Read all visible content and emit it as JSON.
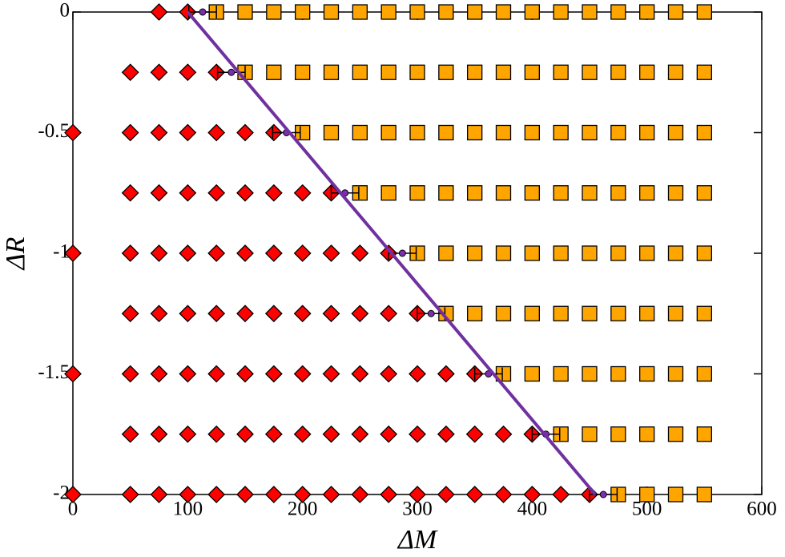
{
  "chart_data": {
    "type": "scatter",
    "x_label": "ΔM",
    "y_label": "ΔR",
    "xlim": [
      0,
      600
    ],
    "xticks": [
      0,
      100,
      200,
      300,
      400,
      500,
      600
    ],
    "ylim": [
      -2,
      0
    ],
    "yticks": [
      0,
      -0.5,
      -1,
      -1.5,
      -2
    ],
    "series": [
      {
        "marker": "diamond",
        "color": "#ff0000",
        "x": [
          75,
          100,
          50,
          75,
          100,
          125,
          0,
          50,
          75,
          100,
          125,
          150,
          175,
          50,
          75,
          100,
          125,
          150,
          175,
          200,
          225,
          0,
          50,
          75,
          100,
          125,
          150,
          175,
          200,
          225,
          250,
          275,
          50,
          75,
          100,
          125,
          150,
          175,
          200,
          225,
          250,
          275,
          300,
          0,
          50,
          75,
          100,
          125,
          150,
          175,
          200,
          225,
          250,
          275,
          300,
          325,
          350,
          50,
          75,
          100,
          125,
          150,
          175,
          200,
          225,
          250,
          275,
          300,
          325,
          350,
          375,
          400,
          0,
          50,
          75,
          100,
          125,
          150,
          175,
          200,
          225,
          250,
          275,
          300,
          325,
          350,
          375,
          400,
          425,
          450
        ],
        "y": [
          0,
          0,
          -0.25,
          -0.25,
          -0.25,
          -0.25,
          -0.5,
          -0.5,
          -0.5,
          -0.5,
          -0.5,
          -0.5,
          -0.5,
          -0.75,
          -0.75,
          -0.75,
          -0.75,
          -0.75,
          -0.75,
          -0.75,
          -0.75,
          -1,
          -1,
          -1,
          -1,
          -1,
          -1,
          -1,
          -1,
          -1,
          -1,
          -1,
          -1.25,
          -1.25,
          -1.25,
          -1.25,
          -1.25,
          -1.25,
          -1.25,
          -1.25,
          -1.25,
          -1.25,
          -1.25,
          -1.5,
          -1.5,
          -1.5,
          -1.5,
          -1.5,
          -1.5,
          -1.5,
          -1.5,
          -1.5,
          -1.5,
          -1.5,
          -1.5,
          -1.5,
          -1.5,
          -1.75,
          -1.75,
          -1.75,
          -1.75,
          -1.75,
          -1.75,
          -1.75,
          -1.75,
          -1.75,
          -1.75,
          -1.75,
          -1.75,
          -1.75,
          -1.75,
          -1.75,
          -2,
          -2,
          -2,
          -2,
          -2,
          -2,
          -2,
          -2,
          -2,
          -2,
          -2,
          -2,
          -2,
          -2,
          -2,
          -2,
          -2,
          -2
        ]
      },
      {
        "marker": "square",
        "color": "#ffa500",
        "x": [
          125,
          150,
          175,
          200,
          225,
          250,
          275,
          300,
          325,
          350,
          375,
          400,
          425,
          450,
          475,
          500,
          525,
          550,
          150,
          175,
          200,
          225,
          250,
          275,
          300,
          325,
          350,
          375,
          400,
          425,
          450,
          475,
          500,
          525,
          550,
          200,
          225,
          250,
          275,
          300,
          325,
          350,
          375,
          400,
          425,
          450,
          475,
          500,
          525,
          550,
          250,
          275,
          300,
          325,
          350,
          375,
          400,
          425,
          450,
          475,
          500,
          525,
          550,
          300,
          325,
          350,
          375,
          400,
          425,
          450,
          475,
          500,
          525,
          550,
          325,
          350,
          375,
          400,
          425,
          450,
          475,
          500,
          525,
          550,
          375,
          400,
          425,
          450,
          475,
          500,
          525,
          550,
          425,
          450,
          475,
          500,
          525,
          550,
          475,
          500,
          525,
          550
        ],
        "y": [
          0,
          0,
          0,
          0,
          0,
          0,
          0,
          0,
          0,
          0,
          0,
          0,
          0,
          0,
          0,
          0,
          0,
          0,
          -0.25,
          -0.25,
          -0.25,
          -0.25,
          -0.25,
          -0.25,
          -0.25,
          -0.25,
          -0.25,
          -0.25,
          -0.25,
          -0.25,
          -0.25,
          -0.25,
          -0.25,
          -0.25,
          -0.25,
          -0.5,
          -0.5,
          -0.5,
          -0.5,
          -0.5,
          -0.5,
          -0.5,
          -0.5,
          -0.5,
          -0.5,
          -0.5,
          -0.5,
          -0.5,
          -0.5,
          -0.5,
          -0.75,
          -0.75,
          -0.75,
          -0.75,
          -0.75,
          -0.75,
          -0.75,
          -0.75,
          -0.75,
          -0.75,
          -0.75,
          -0.75,
          -0.75,
          -1,
          -1,
          -1,
          -1,
          -1,
          -1,
          -1,
          -1,
          -1,
          -1,
          -1,
          -1.25,
          -1.25,
          -1.25,
          -1.25,
          -1.25,
          -1.25,
          -1.25,
          -1.25,
          -1.25,
          -1.25,
          -1.5,
          -1.5,
          -1.5,
          -1.5,
          -1.5,
          -1.5,
          -1.5,
          -1.5,
          -1.75,
          -1.75,
          -1.75,
          -1.75,
          -1.75,
          -1.75,
          -2,
          -2,
          -2,
          -2
        ]
      },
      {
        "marker": "circle",
        "color": "#7b2fb0",
        "x": [
          113,
          138,
          186,
          237,
          287,
          312,
          362,
          412,
          462
        ],
        "y": [
          0,
          -0.25,
          -0.5,
          -0.75,
          -1,
          -1.25,
          -1.5,
          -1.75,
          -2
        ],
        "xerr": [
          12,
          12,
          12,
          12,
          12,
          12,
          12,
          12,
          12
        ]
      },
      {
        "marker": "line",
        "color": "#7030a0",
        "x": [
          100,
          455
        ],
        "y": [
          0,
          -2
        ]
      }
    ]
  }
}
